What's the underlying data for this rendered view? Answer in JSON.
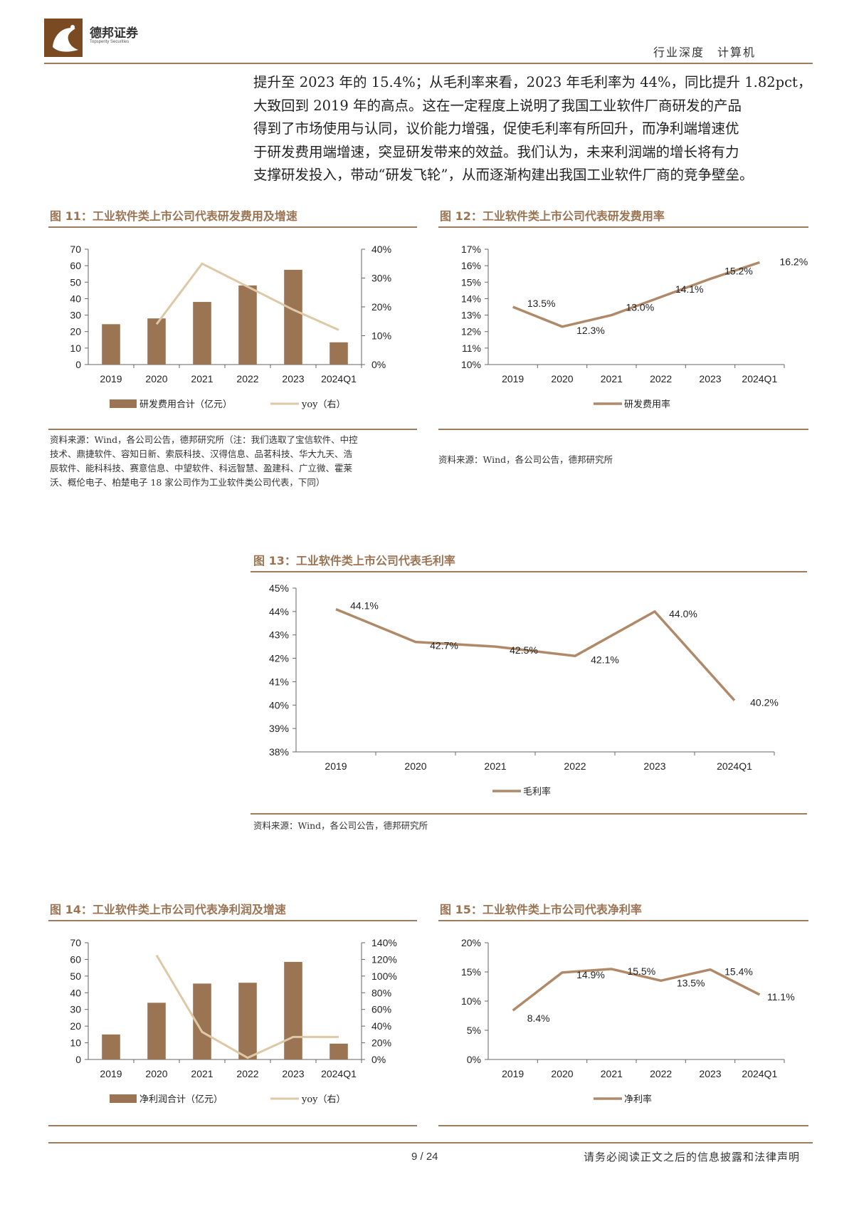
{
  "header": {
    "logo_cn": "德邦证券",
    "logo_en": "Topsperity Securities",
    "category": "行业深度",
    "sector": "计算机"
  },
  "body_text": [
    "提升至 2023 年的 15.4%；从毛利率来看，2023 年毛利率为 44%，同比提升 1.82pct，",
    "大致回到 2019 年的高点。这在一定程度上说明了我国工业软件厂商研发的产品",
    "得到了市场使用与认同，议价能力增强，促使毛利率有所回升，而净利端增速优",
    "于研发费用端增速，突显研发带来的效益。我们认为，未来利润端的增长将有力",
    "支撑研发投入，带动“研发飞轮”，从而逐渐构建出我国工业软件厂商的竞争壁垒。"
  ],
  "figures": {
    "fig11": {
      "title": "图 11：工业软件类上市公司代表研发费用及增速",
      "source": [
        "资料来源：Wind，各公司公告，德邦研究所（注：我们选取了宝信软件、中控",
        "技术、鼎捷软件、容知日新、索辰科技、汉得信息、品茗科技、华大九天、浩",
        "辰软件、能科科技、赛意信息、中望软件、科远智慧、盈建科、广立微、霍莱",
        "沃、概伦电子、柏楚电子 18 家公司作为工业软件类公司代表，下同）"
      ]
    },
    "fig12": {
      "title": "图 12：工业软件类上市公司代表研发费用率",
      "source": [
        "资料来源：Wind，各公司公告，德邦研究所"
      ]
    },
    "fig13": {
      "title": "图 13：工业软件类上市公司代表毛利率",
      "source": [
        "资料来源：Wind，各公司公告，德邦研究所"
      ]
    },
    "fig14": {
      "title": "图 14：工业软件类上市公司代表净利润及增速"
    },
    "fig15": {
      "title": "图 15：工业软件类上市公司代表净利率"
    }
  },
  "chart_data": [
    {
      "id": "fig11",
      "type": "bar",
      "categories": [
        "2019",
        "2020",
        "2021",
        "2022",
        "2023",
        "2024Q1"
      ],
      "series": [
        {
          "name": "研发费用合计（亿元）",
          "type": "bar",
          "axis": "left",
          "values": [
            24.5,
            28,
            38,
            48,
            57.5,
            13.5
          ]
        },
        {
          "name": "yoy（右）",
          "type": "line",
          "axis": "right",
          "values": [
            null,
            14,
            35,
            27,
            19,
            12
          ]
        }
      ],
      "ylim": [
        0,
        70
      ],
      "yticks": [
        0,
        10,
        20,
        30,
        40,
        50,
        60,
        70
      ],
      "y2lim": [
        0,
        40
      ],
      "y2ticks": [
        "0%",
        "10%",
        "20%",
        "30%",
        "40%"
      ],
      "legend": "bottom",
      "colors": {
        "bar": "#9b7454",
        "line": "#ddc9a8"
      }
    },
    {
      "id": "fig12",
      "type": "line",
      "categories": [
        "2019",
        "2020",
        "2021",
        "2022",
        "2023",
        "2024Q1"
      ],
      "series": [
        {
          "name": "研发费用率",
          "values": [
            13.5,
            12.3,
            13.0,
            14.1,
            15.2,
            16.2
          ]
        }
      ],
      "data_labels": [
        "13.5%",
        "12.3%",
        "13.0%",
        "14.1%",
        "15.2%",
        "16.2%"
      ],
      "ylim": [
        10,
        17
      ],
      "yticks": [
        "10%",
        "11%",
        "12%",
        "13%",
        "14%",
        "15%",
        "16%",
        "17%"
      ],
      "legend": "bottom",
      "colors": {
        "line": "#b08a68"
      }
    },
    {
      "id": "fig13",
      "type": "line",
      "categories": [
        "2019",
        "2020",
        "2021",
        "2022",
        "2023",
        "2024Q1"
      ],
      "series": [
        {
          "name": "毛利率",
          "values": [
            44.1,
            42.7,
            42.5,
            42.1,
            44.0,
            40.2
          ]
        }
      ],
      "data_labels": [
        "44.1%",
        "42.7%",
        "42.5%",
        "42.1%",
        "44.0%",
        "40.2%"
      ],
      "ylim": [
        38,
        45
      ],
      "yticks": [
        "38%",
        "39%",
        "40%",
        "41%",
        "42%",
        "43%",
        "44%",
        "45%"
      ],
      "legend": "bottom",
      "colors": {
        "line": "#b08a68"
      }
    },
    {
      "id": "fig14",
      "type": "bar",
      "categories": [
        "2019",
        "2020",
        "2021",
        "2022",
        "2023",
        "2024Q1"
      ],
      "series": [
        {
          "name": "净利润合计（亿元）",
          "type": "bar",
          "axis": "left",
          "values": [
            15,
            34,
            45.5,
            46,
            58.5,
            9.5
          ]
        },
        {
          "name": "yoy（右）",
          "type": "line",
          "axis": "right",
          "values": [
            null,
            125,
            33,
            2,
            27,
            27
          ]
        }
      ],
      "ylim": [
        0,
        70
      ],
      "yticks": [
        0,
        10,
        20,
        30,
        40,
        50,
        60,
        70
      ],
      "y2lim": [
        0,
        140
      ],
      "y2ticks": [
        "0%",
        "20%",
        "40%",
        "60%",
        "80%",
        "100%",
        "120%",
        "140%"
      ],
      "legend": "bottom",
      "colors": {
        "bar": "#9b7454",
        "line": "#ddc9a8"
      }
    },
    {
      "id": "fig15",
      "type": "line",
      "categories": [
        "2019",
        "2020",
        "2021",
        "2022",
        "2023",
        "2024Q1"
      ],
      "series": [
        {
          "name": "净利率",
          "values": [
            8.4,
            14.9,
            15.5,
            13.5,
            15.4,
            11.1
          ]
        }
      ],
      "data_labels": [
        "8.4%",
        "14.9%",
        "15.5%",
        "13.5%",
        "15.4%",
        "11.1%"
      ],
      "ylim": [
        0,
        20
      ],
      "yticks": [
        "0%",
        "5%",
        "10%",
        "15%",
        "20%"
      ],
      "legend": "bottom",
      "colors": {
        "line": "#b08a68"
      }
    }
  ],
  "footer": {
    "page": "9 / 24",
    "disclaimer": "请务必阅读正文之后的信息披露和法律声明"
  }
}
